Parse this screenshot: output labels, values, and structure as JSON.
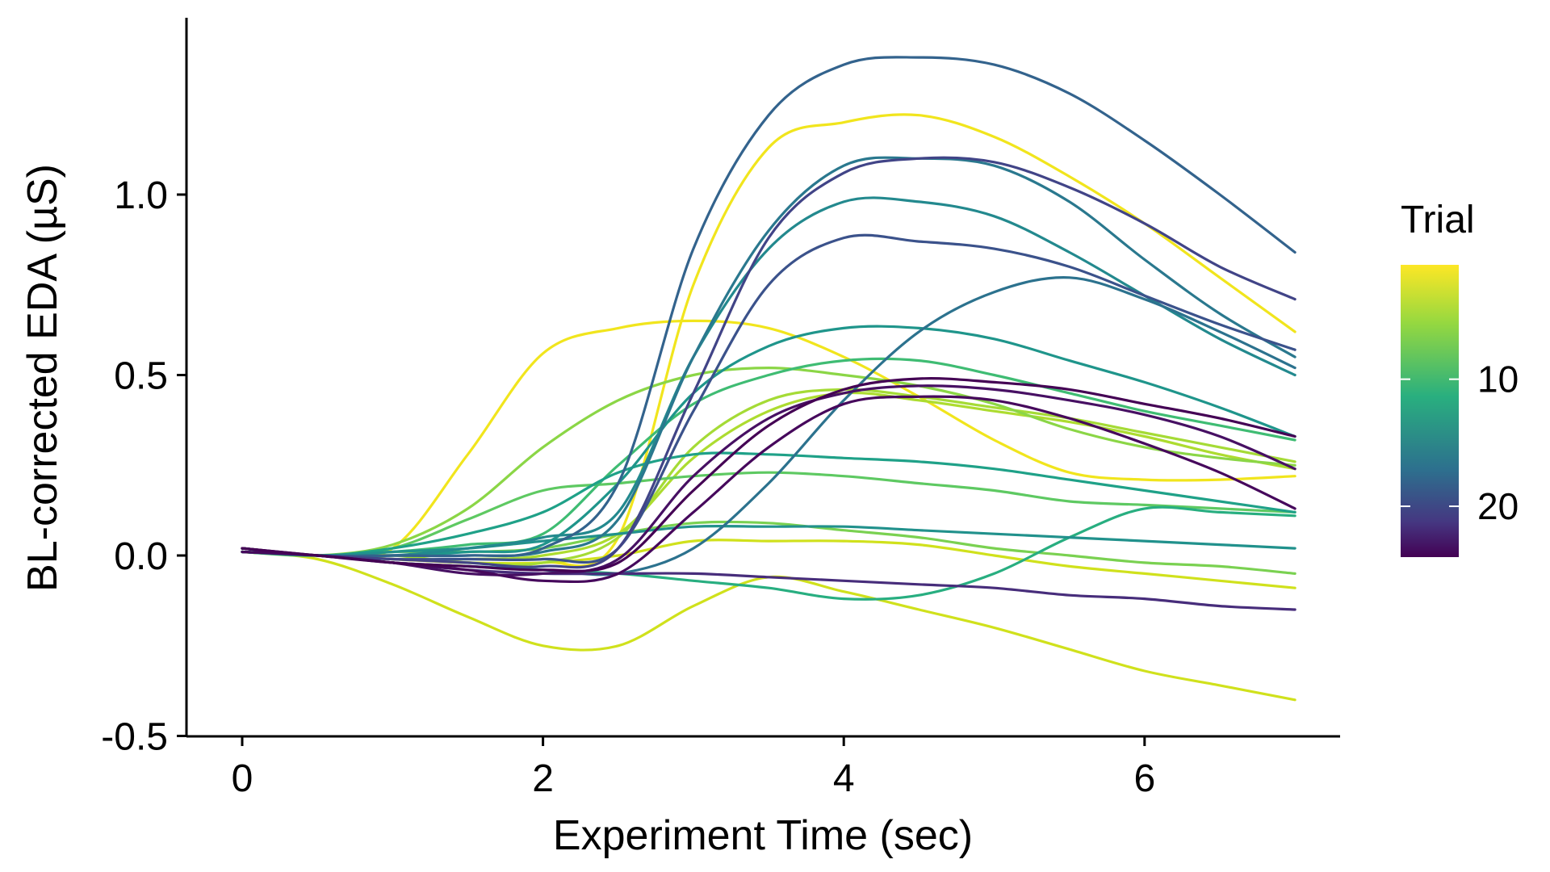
{
  "chart_data": {
    "type": "line",
    "title": "",
    "xlabel": "Experiment Time (sec)",
    "ylabel": "BL-corrected EDA (µS)",
    "xlim": [
      0,
      7
    ],
    "ylim": [
      -0.5,
      1.45
    ],
    "x_ticks": [
      0,
      2,
      4,
      6
    ],
    "x_tick_labels": [
      "0",
      "2",
      "4",
      "6"
    ],
    "y_ticks": [
      -0.5,
      0.0,
      0.5,
      1.0
    ],
    "y_tick_labels": [
      "-0.5",
      "0.0",
      "0.5",
      "1.0"
    ],
    "grid": false,
    "legend": {
      "title": "Trial",
      "placement": "right",
      "type": "colorbar",
      "ticks": [
        10,
        20
      ],
      "tick_labels": [
        "10",
        "20"
      ],
      "range": [
        1,
        24
      ],
      "colormap": "viridis-reversed",
      "low_color": "#fde725",
      "high_color": "#440154"
    },
    "x": [
      0,
      0.5,
      1,
      1.5,
      2,
      2.5,
      3,
      3.5,
      4,
      4.5,
      5,
      5.5,
      6,
      6.5,
      7
    ],
    "series": [
      {
        "trial": 1,
        "color": "#f1e51d",
        "values": [
          0.02,
          0.0,
          0.02,
          0.28,
          0.56,
          0.63,
          0.65,
          0.63,
          0.55,
          0.44,
          0.32,
          0.23,
          0.21,
          0.21,
          0.22
        ]
      },
      {
        "trial": 2,
        "color": "#f1e51d",
        "values": [
          0.02,
          0.0,
          -0.01,
          -0.02,
          -0.02,
          0.05,
          0.75,
          1.13,
          1.2,
          1.22,
          1.16,
          1.05,
          0.92,
          0.77,
          0.62
        ]
      },
      {
        "trial": 3,
        "color": "#d0e11c",
        "values": [
          0.01,
          -0.01,
          -0.08,
          -0.17,
          -0.25,
          -0.25,
          -0.14,
          -0.06,
          -0.1,
          -0.15,
          -0.2,
          -0.26,
          -0.32,
          -0.36,
          -0.4
        ]
      },
      {
        "trial": 4,
        "color": "#d0e11c",
        "values": [
          0.01,
          0.0,
          -0.01,
          -0.02,
          -0.02,
          0.0,
          0.04,
          0.04,
          0.04,
          0.03,
          0.0,
          -0.03,
          -0.05,
          -0.07,
          -0.09
        ]
      },
      {
        "trial": 5,
        "color": "#addc30",
        "values": [
          0.01,
          0.0,
          -0.01,
          -0.01,
          0.0,
          0.06,
          0.27,
          0.4,
          0.45,
          0.43,
          0.4,
          0.37,
          0.33,
          0.28,
          0.24
        ]
      },
      {
        "trial": 6,
        "color": "#a5db36",
        "values": [
          0.02,
          0.0,
          0.0,
          -0.02,
          -0.02,
          0.05,
          0.3,
          0.43,
          0.46,
          0.44,
          0.41,
          0.38,
          0.34,
          0.3,
          0.26
        ]
      },
      {
        "trial": 7,
        "color": "#8bd646",
        "values": [
          0.01,
          0.0,
          0.03,
          0.13,
          0.3,
          0.43,
          0.5,
          0.52,
          0.5,
          0.47,
          0.42,
          0.35,
          0.3,
          0.27,
          0.25
        ]
      },
      {
        "trial": 8,
        "color": "#7ad151",
        "values": [
          0.01,
          0.0,
          0.01,
          0.01,
          0.02,
          0.06,
          0.09,
          0.09,
          0.07,
          0.05,
          0.02,
          0.0,
          -0.02,
          -0.03,
          -0.05
        ]
      },
      {
        "trial": 9,
        "color": "#5ec962",
        "values": [
          0.01,
          0.0,
          0.02,
          0.1,
          0.18,
          0.2,
          0.22,
          0.23,
          0.22,
          0.2,
          0.18,
          0.15,
          0.14,
          0.13,
          0.12
        ]
      },
      {
        "trial": 10,
        "color": "#3fbc73",
        "values": [
          0.01,
          0.0,
          0.01,
          0.03,
          0.06,
          0.25,
          0.42,
          0.5,
          0.54,
          0.54,
          0.5,
          0.45,
          0.4,
          0.36,
          0.32
        ]
      },
      {
        "trial": 11,
        "color": "#28ae80",
        "values": [
          0.01,
          0.0,
          -0.02,
          -0.03,
          -0.04,
          -0.05,
          -0.07,
          -0.09,
          -0.12,
          -0.11,
          -0.05,
          0.05,
          0.13,
          0.12,
          0.11
        ]
      },
      {
        "trial": 12,
        "color": "#1fa188",
        "values": [
          0.02,
          0.0,
          0.02,
          0.06,
          0.12,
          0.23,
          0.28,
          0.28,
          0.27,
          0.26,
          0.24,
          0.21,
          0.18,
          0.15,
          0.12
        ]
      },
      {
        "trial": 13,
        "color": "#1f958b",
        "values": [
          0.01,
          0.0,
          0.0,
          0.01,
          0.03,
          0.2,
          0.45,
          0.58,
          0.63,
          0.63,
          0.6,
          0.54,
          0.48,
          0.41,
          0.33
        ]
      },
      {
        "trial": 14,
        "color": "#21918c",
        "values": [
          0.01,
          0.0,
          0.01,
          0.02,
          0.04,
          0.06,
          0.08,
          0.08,
          0.08,
          0.07,
          0.06,
          0.05,
          0.04,
          0.03,
          0.02
        ]
      },
      {
        "trial": 15,
        "color": "#23898e",
        "values": [
          0.02,
          0.0,
          0.0,
          0.02,
          0.05,
          0.12,
          0.55,
          0.85,
          0.98,
          0.98,
          0.94,
          0.84,
          0.72,
          0.6,
          0.5
        ]
      },
      {
        "trial": 16,
        "color": "#2a788e",
        "values": [
          0.02,
          0.0,
          0.0,
          0.0,
          0.01,
          0.1,
          0.55,
          0.9,
          1.08,
          1.1,
          1.08,
          0.98,
          0.82,
          0.67,
          0.55
        ]
      },
      {
        "trial": 17,
        "color": "#2c728e",
        "values": [
          0.01,
          0.0,
          -0.02,
          -0.03,
          -0.04,
          -0.05,
          0.02,
          0.2,
          0.43,
          0.62,
          0.73,
          0.77,
          0.71,
          0.62,
          0.52
        ]
      },
      {
        "trial": 18,
        "color": "#33638d",
        "values": [
          0.02,
          0.0,
          0.0,
          0.0,
          0.02,
          0.2,
          0.85,
          1.22,
          1.36,
          1.38,
          1.36,
          1.28,
          1.15,
          1.0,
          0.84
        ]
      },
      {
        "trial": 19,
        "color": "#3b528b",
        "values": [
          0.01,
          0.0,
          -0.01,
          -0.01,
          -0.01,
          0.02,
          0.4,
          0.75,
          0.88,
          0.87,
          0.85,
          0.8,
          0.72,
          0.64,
          0.57
        ]
      },
      {
        "trial": 20,
        "color": "#414487",
        "values": [
          0.02,
          0.0,
          -0.01,
          -0.02,
          -0.03,
          0.02,
          0.45,
          0.88,
          1.06,
          1.1,
          1.09,
          1.02,
          0.92,
          0.8,
          0.71
        ]
      },
      {
        "trial": 21,
        "color": "#472d7b",
        "values": [
          0.01,
          0.0,
          -0.02,
          -0.04,
          -0.05,
          -0.05,
          -0.05,
          -0.06,
          -0.07,
          -0.08,
          -0.09,
          -0.11,
          -0.12,
          -0.14,
          -0.15
        ]
      },
      {
        "trial": 22,
        "color": "#471063",
        "values": [
          0.02,
          0.0,
          -0.02,
          -0.05,
          -0.05,
          -0.01,
          0.22,
          0.38,
          0.45,
          0.47,
          0.46,
          0.43,
          0.39,
          0.33,
          0.24
        ]
      },
      {
        "trial": 23,
        "color": "#46085c",
        "values": [
          0.01,
          0.0,
          -0.02,
          -0.04,
          -0.07,
          -0.05,
          0.12,
          0.3,
          0.42,
          0.44,
          0.43,
          0.38,
          0.31,
          0.23,
          0.13
        ]
      },
      {
        "trial": 24,
        "color": "#440154",
        "values": [
          0.02,
          0.0,
          -0.02,
          -0.03,
          -0.04,
          -0.02,
          0.18,
          0.36,
          0.46,
          0.49,
          0.48,
          0.46,
          0.42,
          0.38,
          0.33
        ]
      }
    ]
  }
}
